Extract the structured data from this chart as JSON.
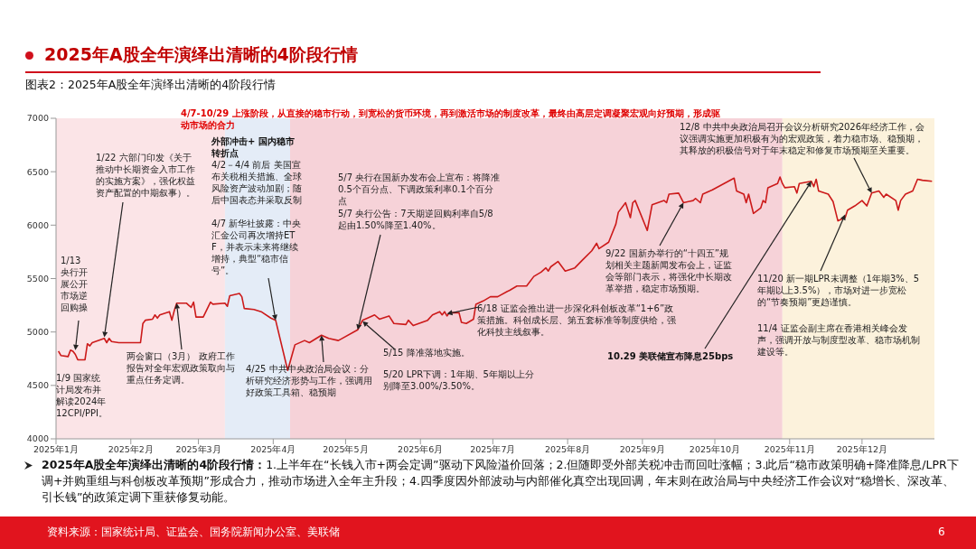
{
  "chart_data": {
    "type": "line",
    "title": "2025年A股全年演绎出清晰的4阶段行情",
    "subtitle": "图表2：2025年A股全年演绎出清晰的4阶段行情",
    "x": [
      "2025-01-02",
      "2025-01-03",
      "2025-01-06",
      "2025-01-07",
      "2025-01-08",
      "2025-01-09",
      "2025-01-10",
      "2025-01-13",
      "2025-01-14",
      "2025-01-15",
      "2025-01-16",
      "2025-01-21",
      "2025-01-22",
      "2025-01-23",
      "2025-01-24",
      "2025-01-27",
      "2025-02-05",
      "2025-02-06",
      "2025-02-07",
      "2025-02-10",
      "2025-02-11",
      "2025-02-12",
      "2025-02-13",
      "2025-02-17",
      "2025-02-18",
      "2025-02-19",
      "2025-02-20",
      "2025-02-24",
      "2025-02-25",
      "2025-02-26",
      "2025-02-27",
      "2025-02-28",
      "2025-03-03",
      "2025-03-06",
      "2025-03-07",
      "2025-03-12",
      "2025-03-13",
      "2025-03-14",
      "2025-03-18",
      "2025-03-19",
      "2025-03-20",
      "2025-03-24",
      "2025-03-27",
      "2025-03-31",
      "2025-04-02",
      "2025-04-07",
      "2025-04-09",
      "2025-04-10",
      "2025-04-14",
      "2025-04-16",
      "2025-04-21",
      "2025-04-24",
      "2025-04-28",
      "2025-05-06",
      "2025-05-08",
      "2025-05-12",
      "2025-05-13",
      "2025-05-15",
      "2025-05-19",
      "2025-05-21",
      "2025-05-26",
      "2025-05-27",
      "2025-05-29",
      "2025-06-04",
      "2025-06-06",
      "2025-06-09",
      "2025-06-10",
      "2025-06-11",
      "2025-06-12",
      "2025-06-13",
      "2025-06-17",
      "2025-06-18",
      "2025-06-20",
      "2025-06-23",
      "2025-06-24",
      "2025-06-27",
      "2025-06-30",
      "2025-07-03",
      "2025-07-07",
      "2025-07-08",
      "2025-07-11",
      "2025-07-15",
      "2025-07-18",
      "2025-07-21",
      "2025-07-23",
      "2025-07-24",
      "2025-07-25",
      "2025-07-28",
      "2025-07-31",
      "2025-08-04",
      "2025-08-07",
      "2025-08-11",
      "2025-08-13",
      "2025-08-14",
      "2025-08-18",
      "2025-08-21",
      "2025-08-22",
      "2025-08-25",
      "2025-08-27",
      "2025-08-28",
      "2025-08-29",
      "2025-09-03",
      "2025-09-05",
      "2025-09-10",
      "2025-09-11",
      "2025-09-12",
      "2025-09-16",
      "2025-09-18",
      "2025-09-22",
      "2025-09-23",
      "2025-09-25",
      "2025-09-26",
      "2025-09-30",
      "2025-10-09",
      "2025-10-10",
      "2025-10-13",
      "2025-10-14",
      "2025-10-15",
      "2025-10-17",
      "2025-10-20",
      "2025-10-21",
      "2025-10-22",
      "2025-10-23",
      "2025-10-27",
      "2025-10-28",
      "2025-10-29",
      "2025-10-30",
      "2025-11-03",
      "2025-11-04",
      "2025-11-05",
      "2025-11-10",
      "2025-11-11",
      "2025-11-12",
      "2025-11-13",
      "2025-11-17",
      "2025-11-19",
      "2025-11-21",
      "2025-11-24",
      "2025-11-25",
      "2025-11-28",
      "2025-12-01",
      "2025-12-03",
      "2025-12-05",
      "2025-12-08",
      "2025-12-10",
      "2025-12-11",
      "2025-12-15",
      "2025-12-16",
      "2025-12-17",
      "2025-12-19",
      "2025-12-22",
      "2025-12-24",
      "2025-12-26",
      "2025-12-30"
    ],
    "series": [
      {
        "color": "#cc1a1a",
        "values": [
          4820,
          4780,
          4770,
          4830,
          4820,
          4790,
          4740,
          4740,
          4890,
          4870,
          4900,
          4940,
          4900,
          4940,
          4910,
          4900,
          4900,
          5080,
          5110,
          5120,
          5160,
          5130,
          5160,
          5190,
          5110,
          5200,
          5270,
          5270,
          5250,
          5230,
          5280,
          5140,
          5140,
          5280,
          5260,
          5270,
          5240,
          5340,
          5360,
          5330,
          5220,
          5210,
          5190,
          5130,
          5110,
          4640,
          4800,
          4880,
          4920,
          4900,
          4970,
          4940,
          4920,
          5020,
          5110,
          5150,
          5160,
          5120,
          5150,
          5080,
          5070,
          5110,
          5060,
          5110,
          5160,
          5190,
          5160,
          5190,
          5150,
          5180,
          5180,
          5090,
          5080,
          5120,
          5260,
          5290,
          5330,
          5330,
          5380,
          5390,
          5430,
          5430,
          5520,
          5560,
          5600,
          5570,
          5610,
          5660,
          5570,
          5600,
          5670,
          5760,
          5830,
          5780,
          5840,
          6010,
          6120,
          6210,
          6070,
          6210,
          6230,
          5950,
          6190,
          6230,
          6210,
          6290,
          6300,
          6210,
          6230,
          6250,
          6210,
          6290,
          6330,
          6440,
          6320,
          6290,
          6210,
          6290,
          6110,
          6160,
          6230,
          6210,
          6350,
          6390,
          6450,
          6390,
          6350,
          6360,
          6300,
          6390,
          6410,
          6360,
          6430,
          6320,
          6290,
          6220,
          6040,
          6070,
          6140,
          6180,
          6230,
          6180,
          6300,
          6320,
          6260,
          6290,
          6230,
          6140,
          6230,
          6290,
          6320,
          6430,
          6420,
          6410
        ]
      }
    ],
    "xlim": [
      "2025-01-01",
      "2025-12-31"
    ],
    "xticks": [
      {
        "value": "2025-01-01",
        "label": "2025年1月"
      },
      {
        "value": "2025-02-01",
        "label": "2025年2月"
      },
      {
        "value": "2025-03-01",
        "label": "2025年3月"
      },
      {
        "value": "2025-04-01",
        "label": "2025年4月"
      },
      {
        "value": "2025-05-01",
        "label": "2025年5月"
      },
      {
        "value": "2025-06-01",
        "label": "2025年6月"
      },
      {
        "value": "2025-07-01",
        "label": "2025年7月"
      },
      {
        "value": "2025-08-01",
        "label": "2025年8月"
      },
      {
        "value": "2025-09-01",
        "label": "2025年9月"
      },
      {
        "value": "2025-10-01",
        "label": "2025年10月"
      },
      {
        "value": "2025-11-01",
        "label": "2025年11月"
      },
      {
        "value": "2025-12-01",
        "label": "2025年12月"
      }
    ],
    "ylim": [
      4000,
      7000
    ],
    "yticks": [
      4000,
      4500,
      5000,
      5500,
      6000,
      6500,
      7000
    ],
    "grid": false,
    "legend": false,
    "marker": "none",
    "line_style": "solid",
    "bands": [
      {
        "axis": "x",
        "from": "2025-01-01",
        "to": "2025-03-12",
        "color": "#fbe4e7"
      },
      {
        "axis": "x",
        "from": "2025-03-12",
        "to": "2025-04-08",
        "color": "#e4ecf7"
      },
      {
        "axis": "x",
        "from": "2025-04-08",
        "to": "2025-10-29",
        "color": "#f6d2d8"
      },
      {
        "axis": "x",
        "from": "2025-10-29",
        "to": "2025-12-31",
        "color": "#fcf2dc"
      }
    ],
    "annotations": [
      "4/7-10/29 上涨阶段，从直接的稳市行动，到宽松的货币环境，再到激活市场的制度改革，最终由高层定调凝聚宏观向好预期，形成驱动市场的合力",
      {
        "text": "1/22 六部门印发《关于推动中长期资金入市工作的实施方案》，强化权益资产配置的中期叙事）。",
        "x": "2025-01-21",
        "y": 4950
      },
      {
        "text": "1/13 央行开展公开市场逆回购操",
        "x": "2025-01-09",
        "y": 4830
      },
      "1/9 国家统计局发布并解读2024年12CPI/PPI。",
      {
        "text": "两会窗口（3月） 政府工作报告对全年宏观政策取向与重点任务定调。",
        "x": "2025-02-20",
        "y": 5270
      },
      "外部冲击+ 国内稳市转折点",
      "4/2－4/4 前后 美国宣布关税相关措施、全球风险资产波动加剧；随后中国表态并采取反制",
      {
        "text": "4/7 新华社披露：中央汇金公司再次增持ETF，并表示未来将继续增持，典型“稳市信号”。",
        "x": "2025-04-02",
        "y": 5110
      },
      {
        "text": "4/25 中共中央政治局会议：分析研究经济形势与工作，强调用好政策工具箱、稳预期",
        "x": "2025-04-21",
        "y": 4970
      },
      "5/7 央行在国新办发布会上宣布：将降准0.5个百分点、下调政策利率0.1个百分点",
      {
        "text": "5/7 央行公告：7天期逆回购利率自5/8起由1.50%降至1.40%。",
        "x": "2025-05-06",
        "y": 5020
      },
      {
        "text": "5/15 降准落地实施。",
        "x": "2025-05-08",
        "y": 5100
      },
      "5/20 LPR下调：1年期、5年期以上分别降至3.00%/3.50%。",
      {
        "text": "6/18 证监会推出进一步深化科创板改革“1+6”政策措施。科创成长层、第五套标准等制度供给，强化科技主线叙事。",
        "x": "2025-06-12",
        "y": 5170
      },
      {
        "text": "9/22 国新办举行的“十四五”规划相关主题新闻发布会上，证监会等部门表示，将强化中长期改革举措，稳定市场预期。",
        "x": "2025-09-18",
        "y": 6210
      },
      {
        "text": "10.29 美联储宣布降息25bps",
        "x": "2025-11-10",
        "y": 6410
      },
      {
        "text": "12/8 中共中央政治局召开会议分析研究2026年经济工作，会议强调实施更加积极有为的宏观政策，着力稳市场、稳预期，其释放的积极信号对于年末稳定和修复市场预期至关重要。",
        "x": "2025-12-05",
        "y": 6300
      },
      {
        "text": "11/20 新一期LPR未调整（1年期3%、5年期以上3.5%），市场对进一步宽松的“节奏预期”更趋谨慎。",
        "x": "2025-11-24",
        "y": 6100
      },
      "11/4 证监会副主席在香港相关峰会发声，强调开放与制度型改革、稳市场机制建设等。",
      "2025年A股全年演绎出清晰的4阶段行情：1.上半年在“长钱入市+两会定调”驱动下风险溢价回落；2.但随即受外部关税冲击而回吐涨幅；3.此后“稳市政策明确+降准降息/LPR下调+并购重组与科创板改革预期”形成合力，推动市场进入全年主升段；4.四季度因外部波动与内部催化真空出现回调，年末则在政治局与中央经济工作会议对“稳增长、深改革、引长钱”的政策定调下重获修复动能。",
      "资料来源：国家统计局、证监会、国务院新闻办公室、美联储",
      "6"
    ]
  }
}
